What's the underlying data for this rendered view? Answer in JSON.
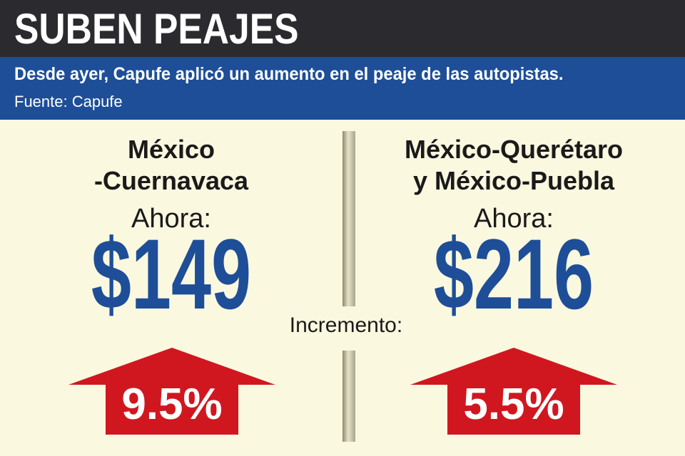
{
  "header": {
    "title": "SUBEN PEAJES",
    "subtitle": "Desde ayer, Capufe aplicó un aumento en el peaje de las autopistas.",
    "source": "Fuente: Capufe"
  },
  "left": {
    "route_line1": "México",
    "route_line2": "-Cuernavaca",
    "now_label": "Ahora:",
    "price": "$149",
    "increase": "9.5%"
  },
  "right": {
    "route_line1": "México-Querétaro",
    "route_line2": "y México-Puebla",
    "now_label": "Ahora:",
    "price": "$216",
    "increase": "5.5%"
  },
  "increase_label": "Incremento:",
  "colors": {
    "background": "#fbf8e0",
    "header_dark": "#2b2a2f",
    "header_blue": "#1e4e97",
    "price_blue": "#1e4e97",
    "arrow_red": "#d0171f"
  }
}
